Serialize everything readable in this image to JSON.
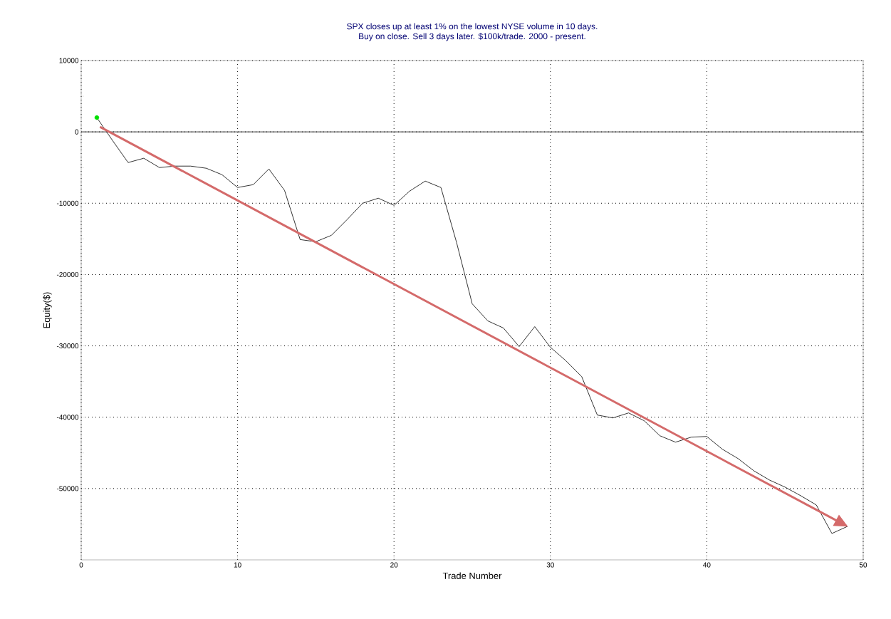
{
  "chart_data": {
    "type": "line",
    "title": "SPX closes up at least 1% on the lowest NYSE volume in 10 days.",
    "subtitle": "Buy on close. Sell 3 days later. $100k/trade. 2000 - present.",
    "xlabel": "Trade Number",
    "ylabel": "Equity($)",
    "xlim": [
      0,
      50
    ],
    "ylim": [
      -60000,
      10000
    ],
    "xticks": [
      0,
      10,
      20,
      30,
      40,
      50
    ],
    "yticks": [
      10000,
      {
        "value": 5000,
        "label": null
      },
      0,
      {
        "value": -5000,
        "label": null
      },
      -10000,
      {
        "value": -15000,
        "label": null
      },
      -20000,
      {
        "value": -25000,
        "label": null
      },
      -30000,
      {
        "value": -35000,
        "label": null
      },
      -40000,
      {
        "value": -45000,
        "label": null
      },
      -50000,
      {
        "value": -55000,
        "label": null
      }
    ],
    "grid": true,
    "marker": "none",
    "line_style": "solid",
    "ref_lines": [
      {
        "axis": "y",
        "value": 0,
        "color": "#000000"
      }
    ],
    "series": [
      {
        "color": "#000000",
        "x": [
          1,
          2,
          3,
          4,
          5,
          6,
          7,
          8,
          9,
          10,
          11,
          12,
          13,
          14,
          15,
          16,
          17,
          18,
          19,
          20,
          21,
          22,
          23,
          24,
          25,
          26,
          27,
          28,
          29,
          30,
          31,
          32,
          33,
          34,
          35,
          36,
          37,
          38,
          39,
          40,
          41,
          42,
          43,
          44,
          45,
          46,
          47,
          48,
          49
        ],
        "values": [
          2000,
          -1200,
          -4300,
          -3700,
          -5000,
          -4800,
          -4800,
          -5100,
          -6000,
          -7800,
          -7400,
          -5200,
          -8200,
          -15100,
          -15400,
          -14500,
          -12300,
          -10000,
          -9300,
          -10300,
          -8300,
          -6900,
          -7800,
          -15500,
          -24100,
          -26500,
          -27500,
          -30100,
          -27300,
          -30200,
          -32100,
          -34300,
          -39700,
          -40100,
          -39400,
          -40500,
          -42600,
          -43500,
          -42800,
          -42700,
          -44500,
          -45800,
          -47500,
          -48800,
          -49800,
          -51000,
          -52300,
          -56300,
          -55300
        ]
      },
      {
        "type": "scatter",
        "color": "#00e000",
        "x": [
          1
        ],
        "values": [
          2000
        ]
      },
      {
        "type": "line",
        "color": "#d46a6a",
        "x": [
          1.2,
          48.9
        ],
        "values": [
          700,
          -55200
        ]
      }
    ]
  }
}
